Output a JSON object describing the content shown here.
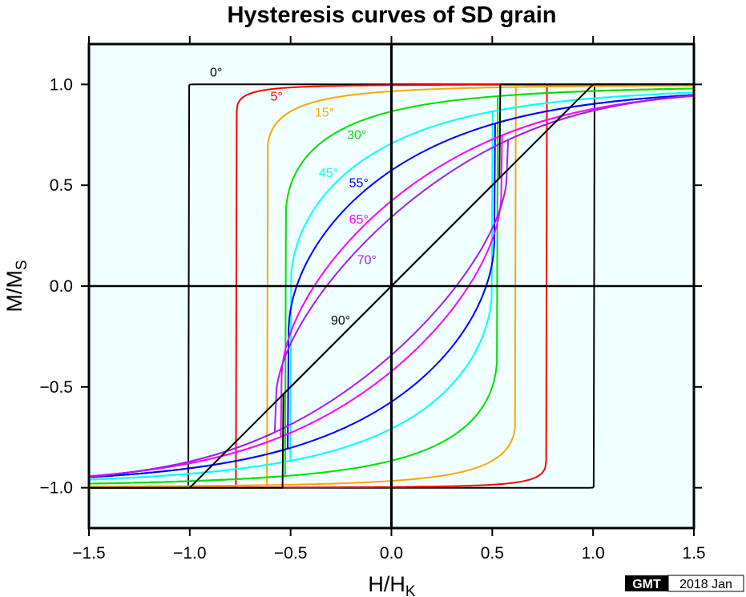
{
  "chart_data": {
    "type": "line",
    "title": "Hysteresis curves of SD grain",
    "xlabel": {
      "main": "H/H",
      "sub": "K"
    },
    "ylabel": {
      "main": "M/M",
      "sub": "S"
    },
    "xlim": [
      -1.5,
      1.5
    ],
    "ylim": [
      -1.2,
      1.2
    ],
    "xticks": [
      -1.5,
      -1.0,
      -0.5,
      0.0,
      0.5,
      1.0,
      1.5
    ],
    "xtick_labels": [
      "−1.5",
      "−1.0",
      "−0.5",
      "0.0",
      "0.5",
      "1.0",
      "1.5"
    ],
    "yticks": [
      -1.0,
      -0.5,
      0.0,
      0.5,
      1.0
    ],
    "ytick_labels": [
      "−1.0",
      "−0.5",
      "0.0",
      "0.5",
      "1.0"
    ],
    "grid": false,
    "model": "Stoner-Wohlfarth",
    "series": [
      {
        "name": "0°",
        "angle_deg": 0,
        "color": "#000000",
        "label_at": [
          -0.9,
          1.04
        ]
      },
      {
        "name": "5°",
        "angle_deg": 5,
        "color": "#ff0000",
        "label_at": [
          -0.6,
          0.92
        ]
      },
      {
        "name": "15°",
        "angle_deg": 15,
        "color": "#ffa500",
        "label_at": [
          -0.38,
          0.84
        ]
      },
      {
        "name": "30°",
        "angle_deg": 30,
        "color": "#00e000",
        "label_at": [
          -0.22,
          0.73
        ]
      },
      {
        "name": "45°",
        "angle_deg": 45,
        "color": "#00ffff",
        "label_at": [
          -0.36,
          0.54
        ]
      },
      {
        "name": "55°",
        "angle_deg": 55,
        "color": "#0000ff",
        "label_at": [
          -0.21,
          0.49
        ]
      },
      {
        "name": "65°",
        "angle_deg": 65,
        "color": "#ff00ff",
        "label_at": [
          -0.21,
          0.31
        ]
      },
      {
        "name": "70°",
        "angle_deg": 70,
        "color": "#a020f0",
        "label_at": [
          -0.17,
          0.11
        ]
      },
      {
        "name": "90°",
        "angle_deg": 90,
        "color": "#000000",
        "label_at": [
          -0.3,
          -0.19
        ]
      }
    ],
    "plot_background": "#f0ffff"
  },
  "stamp": {
    "logo": "GMT",
    "date": "2018 Jan"
  }
}
